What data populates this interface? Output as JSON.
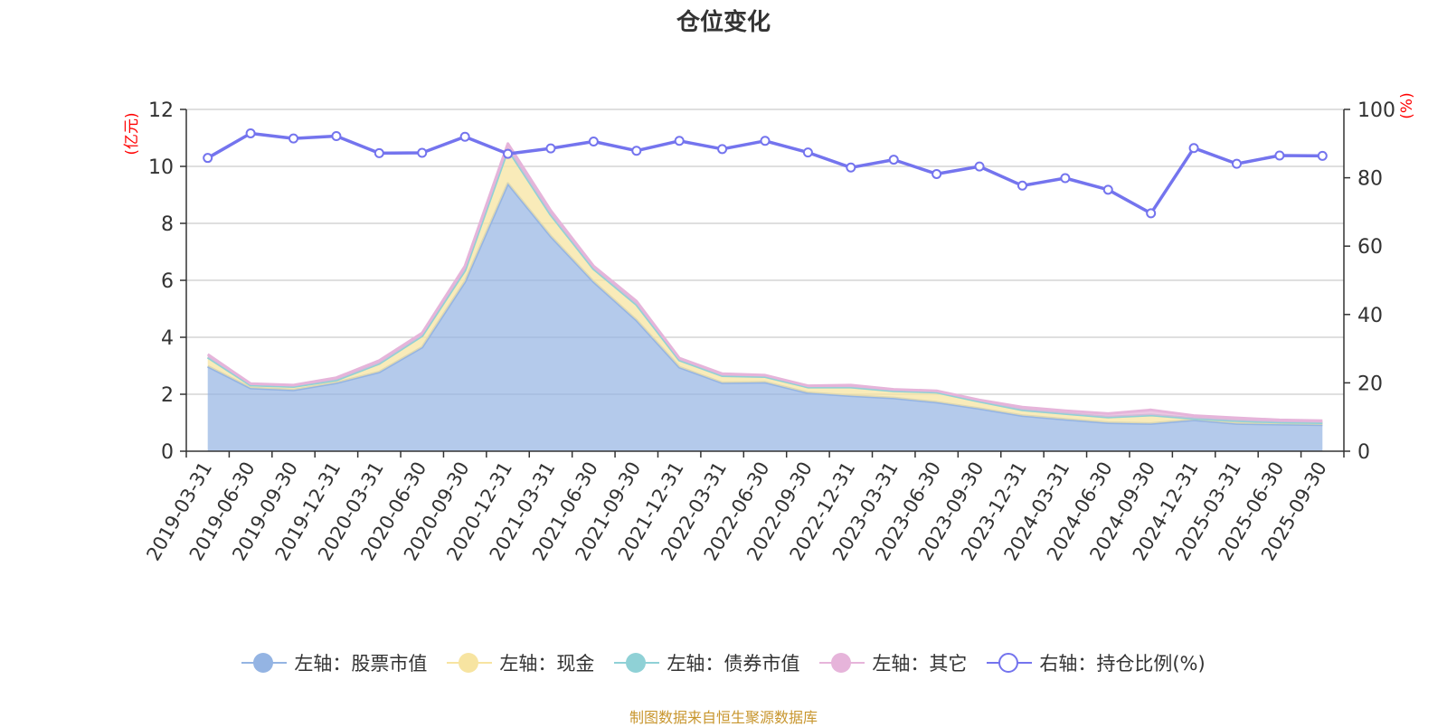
{
  "title": "仓位变化",
  "source_note": "制图数据来自恒生聚源数据库",
  "left_axis_unit": "(亿元)",
  "right_axis_unit": "(%)",
  "colors": {
    "stock": "#94b4e3",
    "cash": "#f7e4a1",
    "bond": "#8fd1d6",
    "other": "#e6b4da",
    "ratio": "#7474ee",
    "unit_label": "#ff0000",
    "source": "#c8962e"
  },
  "legend": [
    {
      "key": "stock",
      "label": "左轴：股票市值",
      "icon": "filled-circle"
    },
    {
      "key": "cash",
      "label": "左轴：现金",
      "icon": "filled-circle"
    },
    {
      "key": "bond",
      "label": "左轴：债券市值",
      "icon": "filled-circle"
    },
    {
      "key": "other",
      "label": "左轴：其它",
      "icon": "filled-circle"
    },
    {
      "key": "ratio",
      "label": "右轴：持仓比例(%)",
      "icon": "hollow-circle"
    }
  ],
  "chart_data": {
    "type": "area",
    "title": "仓位变化",
    "categories": [
      "2019-03-31",
      "2019-06-30",
      "2019-09-30",
      "2019-12-31",
      "2020-03-31",
      "2020-06-30",
      "2020-09-30",
      "2020-12-31",
      "2021-03-31",
      "2021-06-30",
      "2021-09-30",
      "2021-12-31",
      "2022-03-31",
      "2022-06-30",
      "2022-09-30",
      "2022-12-31",
      "2023-03-31",
      "2023-06-30",
      "2023-09-30",
      "2023-12-31",
      "2024-03-31",
      "2024-06-30",
      "2024-09-30",
      "2024-12-31",
      "2025-03-31",
      "2025-06-30",
      "2025-09-30"
    ],
    "left_axis": {
      "label": "(亿元)",
      "min": 0,
      "max": 12,
      "ticks": [
        0,
        2,
        4,
        6,
        8,
        10,
        12
      ]
    },
    "right_axis": {
      "label": "(%)",
      "min": 0,
      "max": 100,
      "ticks": [
        0,
        20,
        40,
        60,
        80,
        100
      ]
    },
    "stacked": true,
    "series": [
      {
        "key": "stock",
        "name": "左轴：股票市值",
        "axis": "left",
        "values": [
          2.98,
          2.22,
          2.15,
          2.4,
          2.78,
          3.65,
          5.95,
          9.4,
          7.55,
          5.95,
          4.6,
          2.95,
          2.4,
          2.42,
          2.05,
          1.95,
          1.87,
          1.72,
          1.5,
          1.25,
          1.12,
          1.0,
          0.97,
          1.1,
          0.97,
          0.95,
          0.93
        ]
      },
      {
        "key": "cash",
        "name": "左轴：现金",
        "axis": "left",
        "values": [
          0.32,
          0.1,
          0.12,
          0.1,
          0.3,
          0.4,
          0.4,
          1.2,
          0.75,
          0.45,
          0.55,
          0.25,
          0.25,
          0.2,
          0.2,
          0.3,
          0.25,
          0.35,
          0.25,
          0.2,
          0.2,
          0.2,
          0.3,
          0.05,
          0.1,
          0.07,
          0.07
        ]
      },
      {
        "key": "bond",
        "name": "左轴：债券市值",
        "axis": "left",
        "values": [
          0,
          0,
          0,
          0,
          0,
          0,
          0,
          0,
          0,
          0,
          0,
          0,
          0,
          0,
          0,
          0,
          0,
          0,
          0,
          0,
          0,
          0,
          0,
          0,
          0,
          0,
          0
        ]
      },
      {
        "key": "other",
        "name": "左轴：其它",
        "axis": "left",
        "values": [
          0.1,
          0.05,
          0.05,
          0.08,
          0.1,
          0.1,
          0.15,
          0.2,
          0.15,
          0.1,
          0.12,
          0.07,
          0.07,
          0.05,
          0.05,
          0.07,
          0.05,
          0.05,
          0.05,
          0.1,
          0.1,
          0.12,
          0.18,
          0.1,
          0.1,
          0.08,
          0.07
        ]
      },
      {
        "key": "ratio",
        "name": "右轴：持仓比例(%)",
        "axis": "right",
        "values": [
          85.8,
          93.0,
          91.5,
          92.2,
          87.2,
          87.3,
          92.0,
          87.0,
          88.6,
          90.6,
          87.9,
          90.8,
          88.4,
          90.8,
          87.4,
          83.0,
          85.3,
          81.1,
          83.3,
          77.7,
          79.9,
          76.5,
          69.6,
          88.7,
          84.1,
          86.5,
          86.4
        ]
      }
    ]
  }
}
